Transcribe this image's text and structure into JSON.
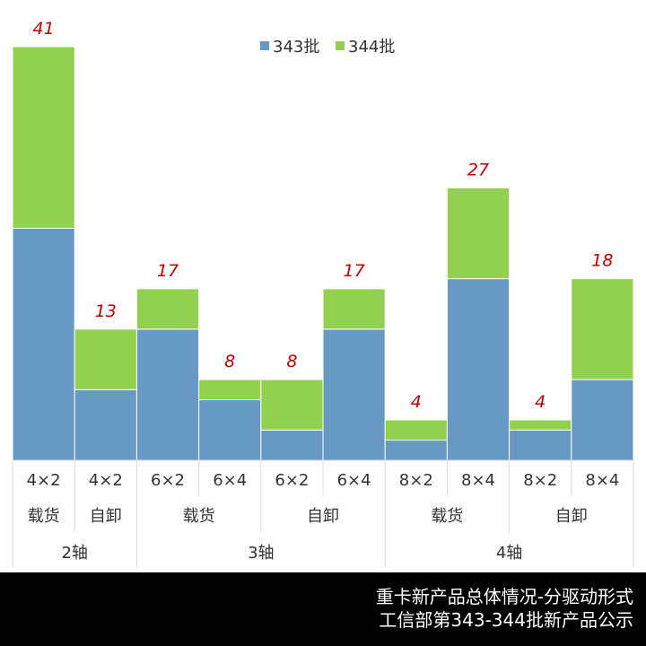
{
  "chart_data": {
    "type": "bar",
    "stacked": true,
    "categories": [
      "4×2",
      "4×2",
      "6×2",
      "6×4",
      "6×2",
      "6×4",
      "8×2",
      "8×4",
      "8×2",
      "8×4"
    ],
    "category_groups": {
      "type": [
        "载货",
        "自卸",
        "载货",
        "自卸",
        "载货",
        "自卸"
      ],
      "axle": [
        "2轴",
        "3轴",
        "4轴"
      ]
    },
    "series": [
      {
        "name": "343批",
        "color": "#6699c4",
        "values": [
          23,
          7,
          13,
          6,
          3,
          13,
          2,
          18,
          3,
          8
        ]
      },
      {
        "name": "344批",
        "color": "#92d050",
        "values": [
          18,
          6,
          4,
          2,
          5,
          4,
          2,
          9,
          1,
          10
        ]
      }
    ],
    "totals": [
      41,
      13,
      17,
      8,
      8,
      17,
      4,
      27,
      4,
      18
    ],
    "ylim": [
      0,
      41
    ],
    "legend": "top"
  },
  "footer": {
    "line1": "重卡新产品总体情况-分驱动形式",
    "line2": "工信部第343-344批新产品公示"
  }
}
